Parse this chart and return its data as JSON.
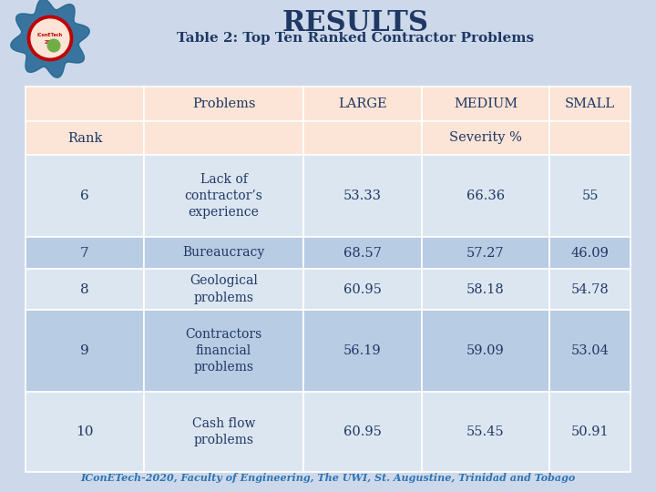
{
  "title": "RESULTS",
  "subtitle": "Table 2: Top Ten Ranked Contractor Problems",
  "col_headers": [
    "Problems",
    "LARGE",
    "MEDIUM",
    "SMALL"
  ],
  "sub_header_left": "Rank",
  "sub_header_mid": "Severity %",
  "rows": [
    {
      "rank": "6",
      "problem": "Lack of\ncontractor’s\nexperience",
      "large": "53.33",
      "medium": "66.36",
      "small": "55"
    },
    {
      "rank": "7",
      "problem": "Bureaucracy",
      "large": "68.57",
      "medium": "57.27",
      "small": "46.09"
    },
    {
      "rank": "8",
      "problem": "Geological\nproblems",
      "large": "60.95",
      "medium": "58.18",
      "small": "54.78"
    },
    {
      "rank": "9",
      "problem": "Contractors\nfinancial\nproblems",
      "large": "56.19",
      "medium": "59.09",
      "small": "53.04"
    },
    {
      "rank": "10",
      "problem": "Cash flow\nproblems",
      "large": "60.95",
      "medium": "55.45",
      "small": "50.91"
    }
  ],
  "footer": "IConETech-2020, Faculty of Engineering, The UWI, St. Augustine, Trinidad and Tobago",
  "header_row_color": "#fce4d6",
  "row_light": "#dce6f1",
  "row_highlight": "#b8cce4",
  "title_color": "#1f3864",
  "footer_color": "#2e74b5",
  "text_color": "#1f3864",
  "page_bg": "#cdd9ea",
  "title_bg": "#cdd9ea",
  "table_edge": "#ffffff"
}
